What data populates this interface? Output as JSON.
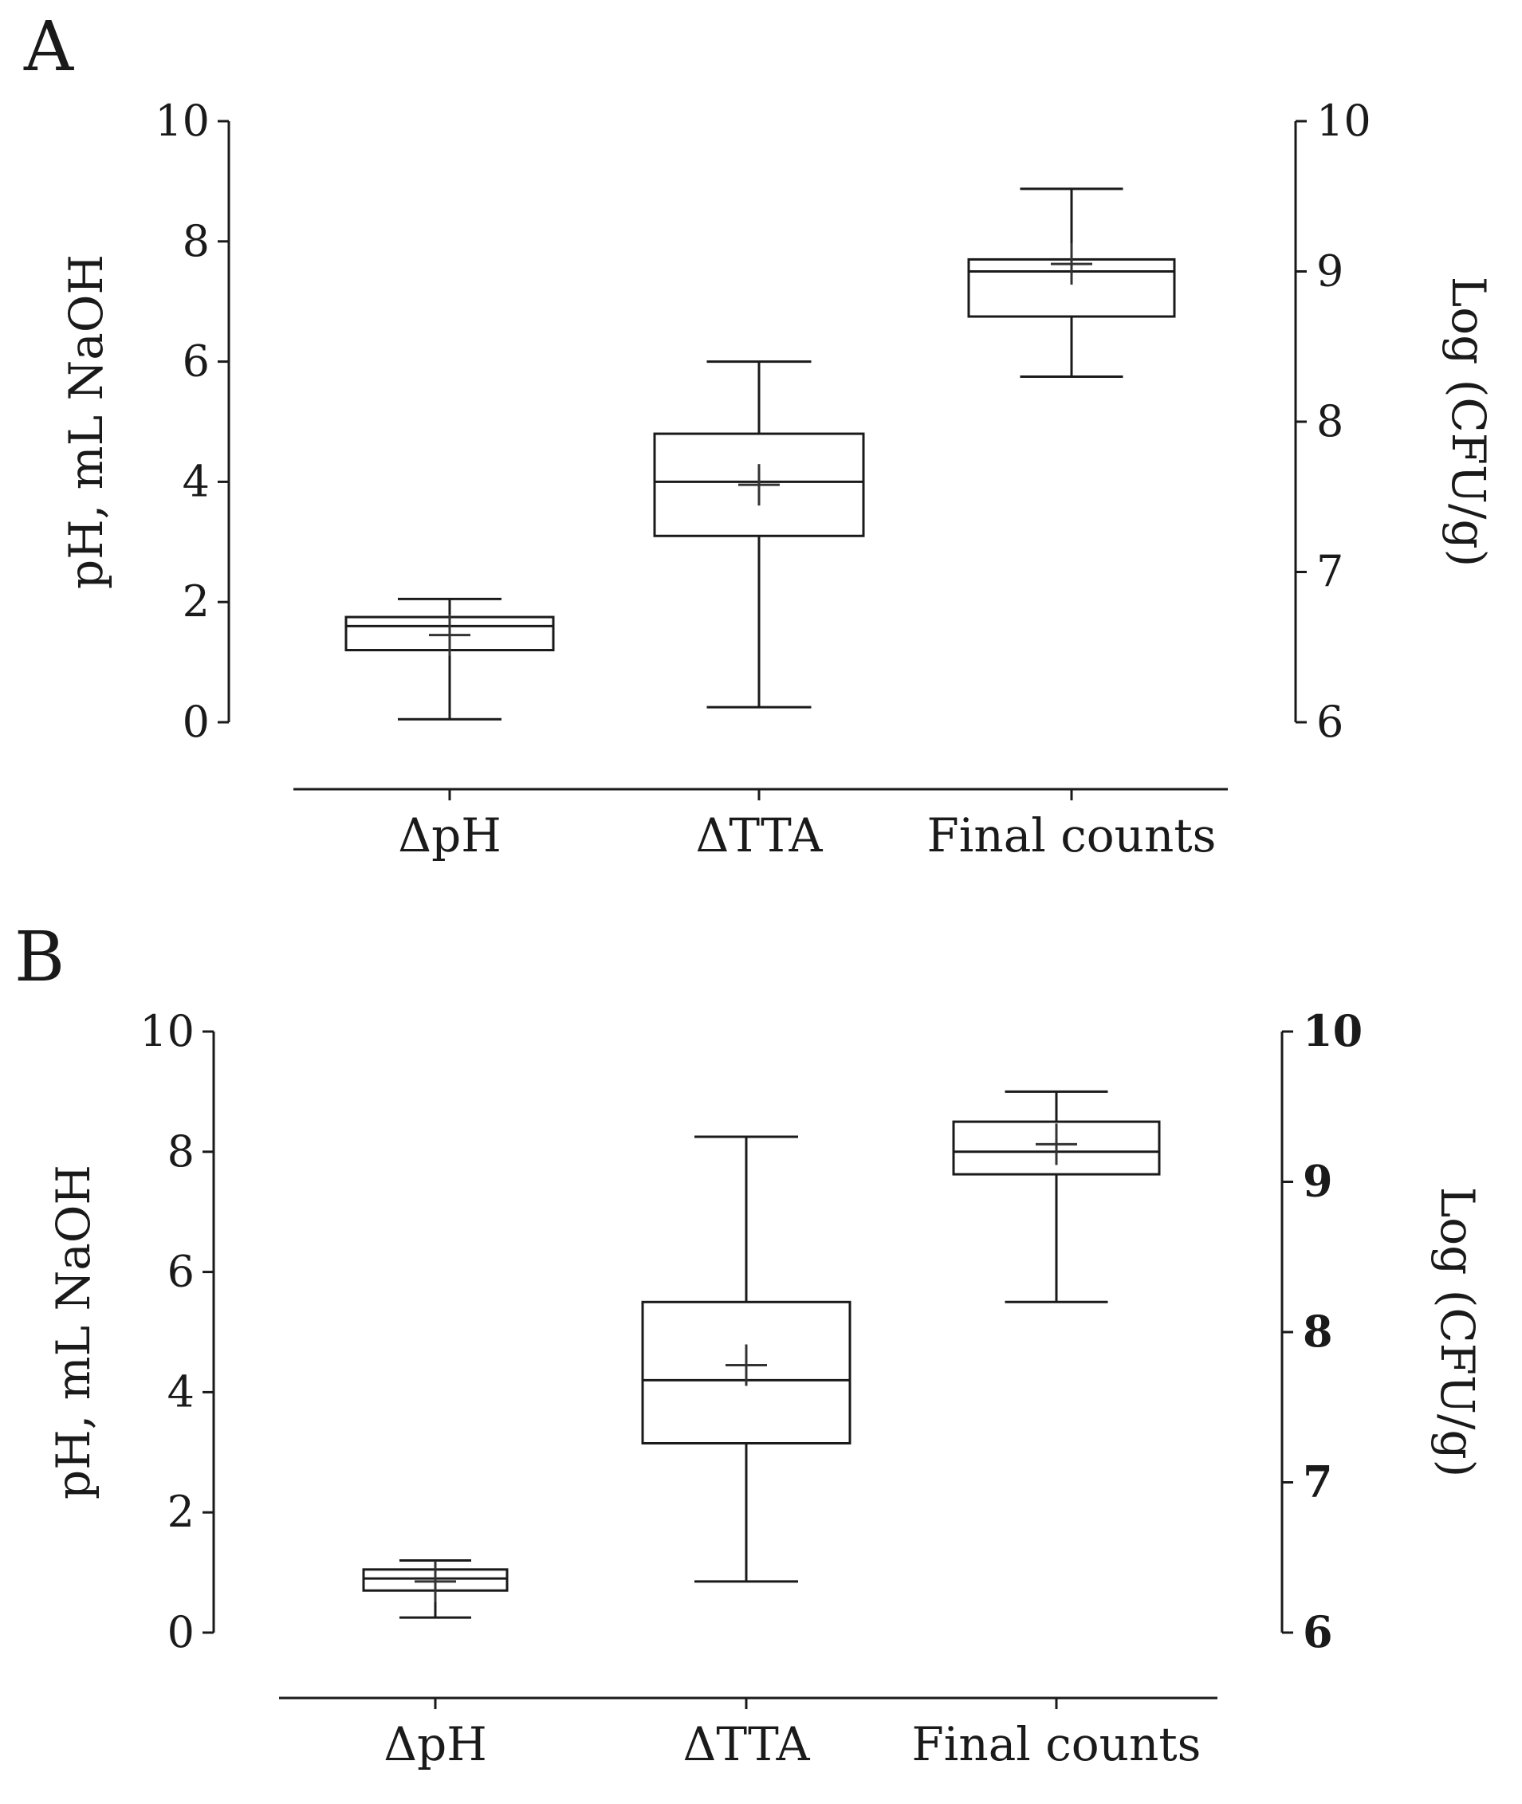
{
  "chart_data": [
    {
      "type": "box",
      "panel_label": "A",
      "ylabel": "pH, mL NaOH",
      "y2label": "Log (CFU/g)",
      "ylim": [
        0,
        10
      ],
      "y2lim": [
        6,
        10
      ],
      "yticks": [
        "0",
        "2",
        "4",
        "6",
        "8",
        "10"
      ],
      "y2ticks": [
        "6",
        "7",
        "8",
        "9",
        "10"
      ],
      "categories": [
        "ΔpH",
        "ΔTTA",
        "Final counts"
      ],
      "boxes": [
        {
          "category": "ΔpH",
          "axis": "left",
          "min": 0.05,
          "q1": 1.2,
          "median": 1.6,
          "q3": 1.75,
          "max": 2.05,
          "mean": 1.45
        },
        {
          "category": "ΔTTA",
          "axis": "left",
          "min": 0.25,
          "q1": 3.1,
          "median": 4.0,
          "q3": 4.8,
          "max": 6.0,
          "mean": 3.95
        },
        {
          "category": "Final counts",
          "axis": "right",
          "min": 8.3,
          "q1": 8.7,
          "median": 9.0,
          "q3": 9.08,
          "max": 9.55,
          "mean": 9.05
        }
      ]
    },
    {
      "type": "box",
      "panel_label": "B",
      "ylabel": "pH, mL NaOH",
      "y2label": "Log (CFU/g)",
      "ylim": [
        0,
        10
      ],
      "y2lim": [
        6,
        10
      ],
      "yticks": [
        "0",
        "2",
        "4",
        "6",
        "8",
        "10"
      ],
      "y2ticks": [
        "6",
        "7",
        "8",
        "9",
        "10"
      ],
      "categories": [
        "ΔpH",
        "ΔTTA",
        "Final counts"
      ],
      "boxes": [
        {
          "category": "ΔpH",
          "axis": "left",
          "min": 0.25,
          "q1": 0.7,
          "median": 0.9,
          "q3": 1.05,
          "max": 1.2,
          "mean": 0.85
        },
        {
          "category": "ΔTTA",
          "axis": "left",
          "min": 0.85,
          "q1": 3.15,
          "median": 4.2,
          "q3": 5.5,
          "max": 8.25,
          "mean": 4.45
        },
        {
          "category": "Final counts",
          "axis": "right",
          "min": 8.2,
          "q1": 9.05,
          "median": 9.2,
          "q3": 9.4,
          "max": 9.6,
          "mean": 9.25
        }
      ]
    }
  ]
}
